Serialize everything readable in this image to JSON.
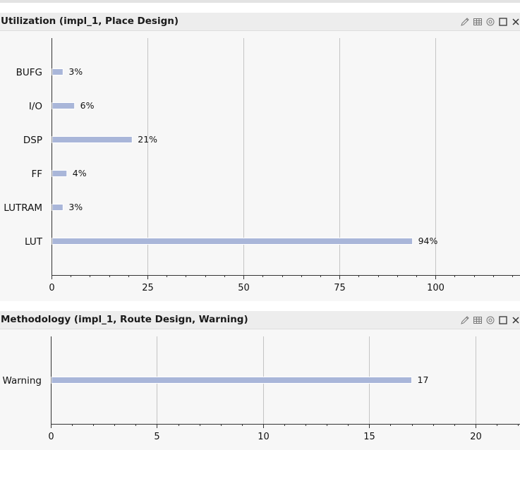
{
  "colors": {
    "bar": "#a9b6d9",
    "grid": "#c4c4c4",
    "axis": "#333333"
  },
  "panels": [
    {
      "title": "Utilization (impl_1, Place Design)",
      "tools": [
        "edit-icon",
        "grid-icon",
        "settings-icon",
        "maximize-icon",
        "close-icon"
      ],
      "chart_data": {
        "type": "bar",
        "orientation": "horizontal",
        "categories": [
          "BUFG",
          "I/O",
          "DSP",
          "FF",
          "LUTRAM",
          "LUT"
        ],
        "values": [
          3,
          6,
          21,
          4,
          3,
          94
        ],
        "value_labels": [
          "3%",
          "6%",
          "21%",
          "4%",
          "3%",
          "94%"
        ],
        "xlim": [
          0,
          122
        ],
        "xticks": [
          0,
          25,
          50,
          75,
          100
        ],
        "xtick_labels": [
          "0",
          "25",
          "50",
          "75",
          "100"
        ],
        "minor_step": 5,
        "grid": true
      }
    },
    {
      "title": "Methodology (impl_1, Route Design, Warning)",
      "tools": [
        "edit-icon",
        "grid-icon",
        "settings-icon",
        "maximize-icon",
        "close-icon"
      ],
      "chart_data": {
        "type": "bar",
        "orientation": "horizontal",
        "categories": [
          "Warning"
        ],
        "values": [
          17
        ],
        "value_labels": [
          "17"
        ],
        "xlim": [
          0,
          22.1
        ],
        "xticks": [
          0,
          5,
          10,
          15,
          20
        ],
        "xtick_labels": [
          "0",
          "5",
          "10",
          "15",
          "20"
        ],
        "minor_step": 1,
        "grid": true
      }
    }
  ]
}
